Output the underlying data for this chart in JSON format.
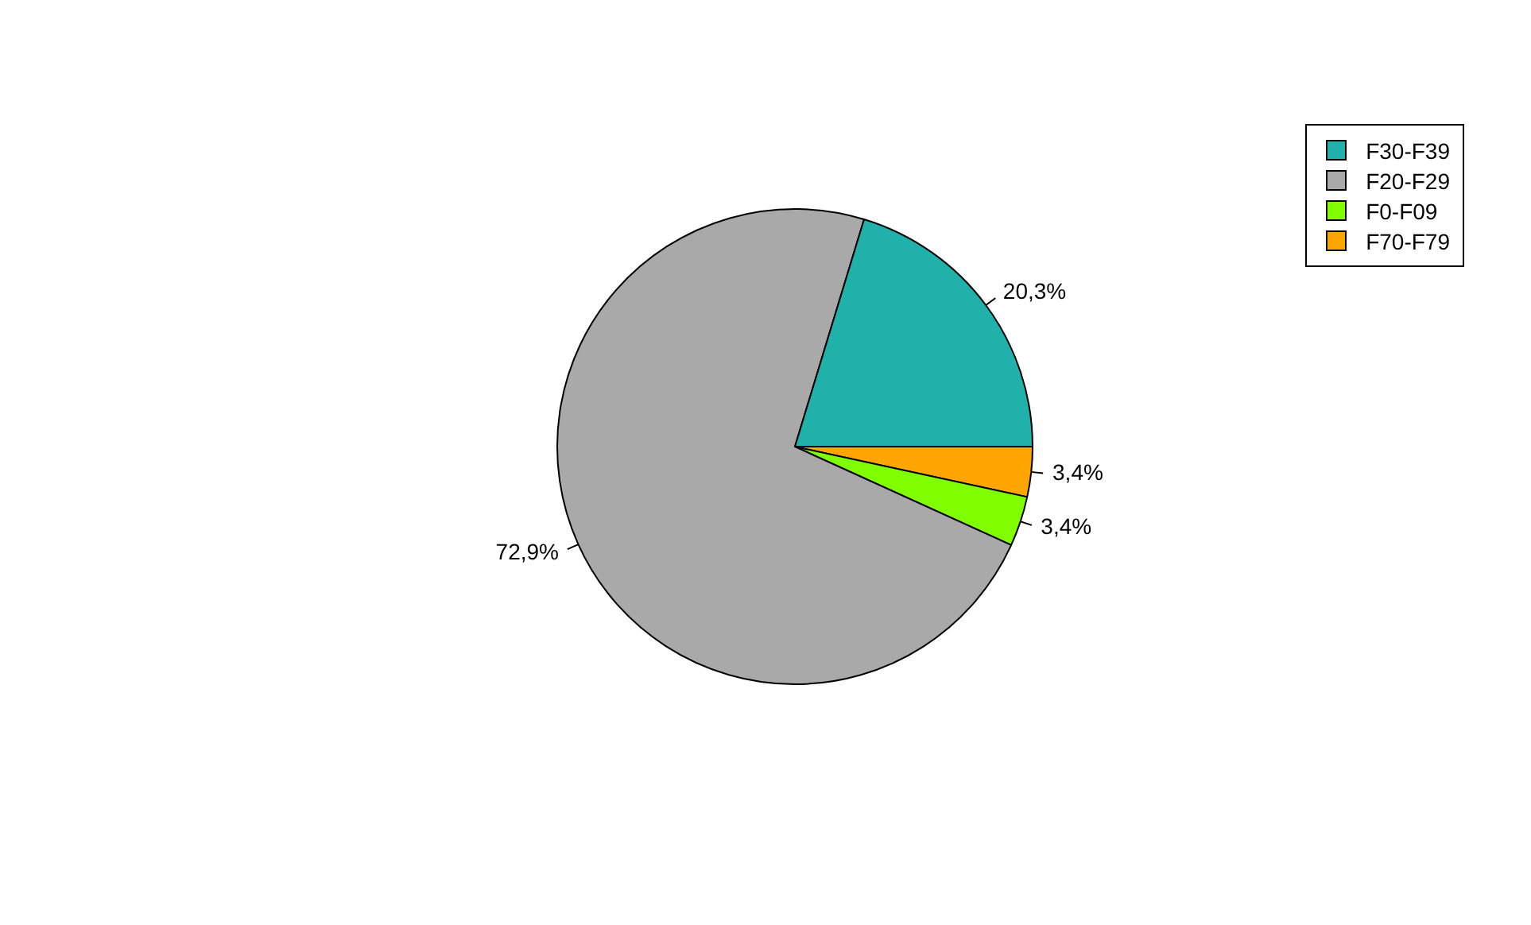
{
  "chart_data": {
    "type": "pie",
    "categories": [
      "F30-F39",
      "F20-F29",
      "F0-F09",
      "F70-F79"
    ],
    "values": [
      20.3,
      72.9,
      3.4,
      3.4
    ],
    "colors": [
      "#20b2aa",
      "#a9a9a9",
      "#7fff00",
      "#ffa500"
    ],
    "value_labels": [
      "20,3%",
      "72,9%",
      "3,4%",
      "3,4%"
    ],
    "legend": "top right"
  }
}
